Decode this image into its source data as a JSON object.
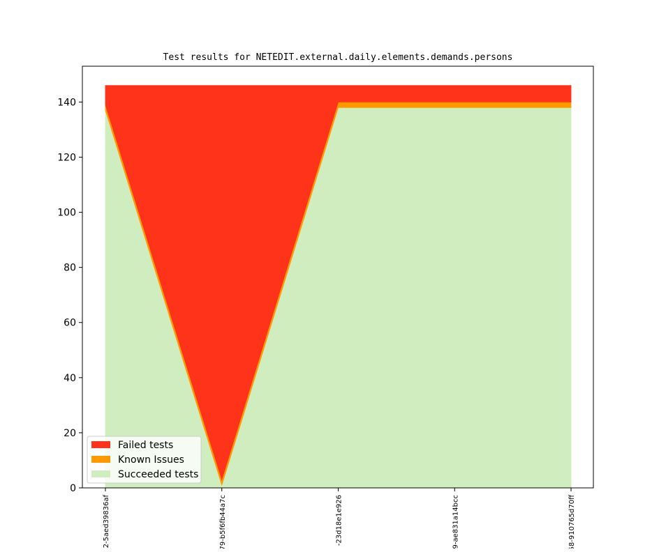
{
  "chart_data": {
    "type": "area",
    "stacked": true,
    "title": "Test results for NETEDIT.external.daily.elements.demands.persons",
    "xlabel": "",
    "ylabel": "",
    "categories": [
      "2-5aed39836af",
      "79-b5f6fb44a7c",
      "-23d18e1e926",
      "9-ae831a14bcc",
      "58-910765d70ff"
    ],
    "ylim": [
      0,
      153
    ],
    "yticks": [
      0,
      20,
      40,
      60,
      80,
      100,
      120,
      140
    ],
    "grid": false,
    "legend_position": "lower-left",
    "series": [
      {
        "name": "Succeeded tests",
        "color": "#d0edc0",
        "values": [
          137,
          1,
          138,
          138,
          138
        ]
      },
      {
        "name": "Known Issues",
        "color": "#ff9900",
        "values": [
          2,
          2,
          2,
          2,
          2
        ]
      },
      {
        "name": "Failed tests",
        "color": "#ff321a",
        "values": [
          7,
          143,
          6,
          6,
          6
        ]
      }
    ],
    "legend_order": [
      "Failed tests",
      "Known Issues",
      "Succeeded tests"
    ]
  }
}
